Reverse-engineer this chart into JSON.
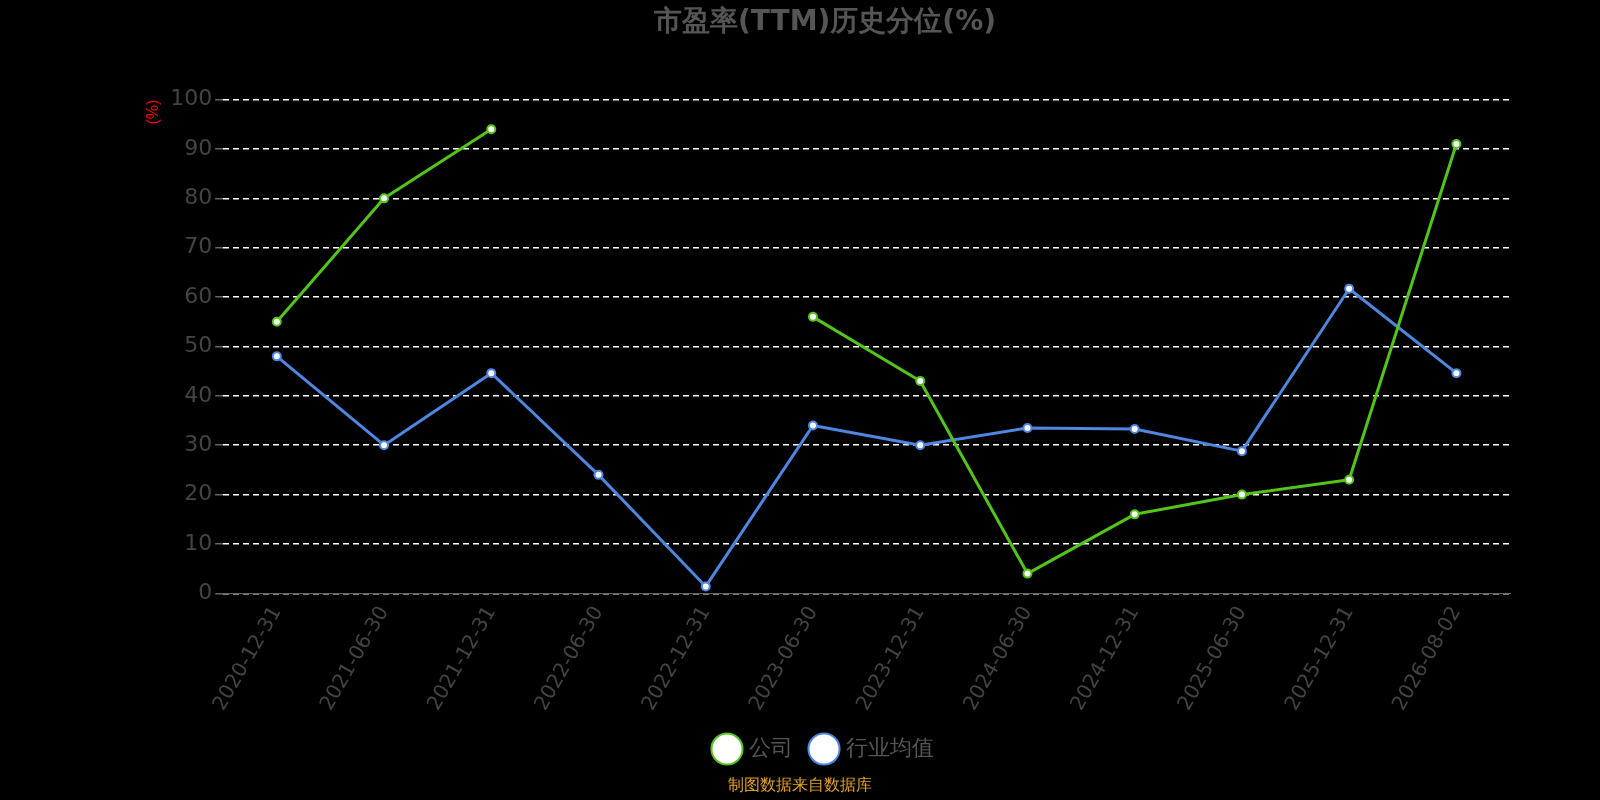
{
  "chart_data": {
    "type": "line",
    "title": "市盈率(TTM)历史分位(%)",
    "ylabel": "(%)",
    "categories": [
      "2020-12-31",
      "2021-06-30",
      "2021-12-31",
      "2022-06-30",
      "2022-12-31",
      "2023-06-30",
      "2023-12-31",
      "2024-06-30",
      "2024-12-31",
      "2025-06-30",
      "2025-12-31",
      "2026-08-02"
    ],
    "series": [
      {
        "name": "公司",
        "color": "#52c41a",
        "values": [
          55,
          80,
          94,
          null,
          null,
          56,
          43,
          4,
          16,
          20,
          23,
          91
        ]
      },
      {
        "name": "行业均值",
        "color": "#4e86e0",
        "values": [
          48,
          30,
          44.6,
          24,
          1.4,
          34,
          30,
          33.5,
          33.3,
          28.8,
          61.7,
          44.6
        ]
      }
    ],
    "ylim": [
      0,
      100
    ],
    "yticks": [
      0,
      10,
      20,
      30,
      40,
      50,
      60,
      70,
      80,
      90,
      100
    ],
    "grid": "y",
    "legend": "bottom",
    "marker": "circle",
    "line_style": "solid",
    "annotations": [
      "制图数据来自数据库"
    ]
  }
}
